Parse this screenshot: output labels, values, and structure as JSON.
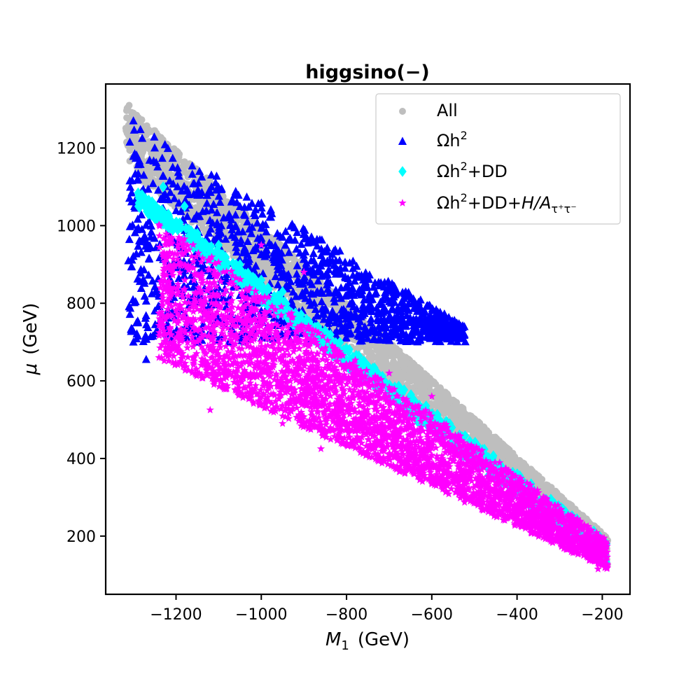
{
  "chart_data": {
    "type": "scatter",
    "title": "higgsino(−)",
    "xlabel_main": "M",
    "xlabel_sub": "1",
    "xlabel_unit": "(GeV)",
    "ylabel_main": "μ",
    "ylabel_unit": "(GeV)",
    "xlim": [
      -1365,
      -135
    ],
    "ylim": [
      50,
      1365
    ],
    "xticks": [
      -1200,
      -1000,
      -800,
      -600,
      -400,
      -200
    ],
    "yticks": [
      200,
      400,
      600,
      800,
      1000,
      1200
    ],
    "xtick_labels": [
      "−1200",
      "−1000",
      "−800",
      "−600",
      "−400",
      "−200"
    ],
    "ytick_labels": [
      "200",
      "400",
      "600",
      "800",
      "1000",
      "1200"
    ],
    "legend_position": "upper right",
    "series": [
      {
        "name": "All",
        "legend_label": "All",
        "marker": "circle",
        "color": "#bebebe",
        "region": {
          "x_range": [
            -1318,
            -187
          ],
          "upper_at_left": 1310,
          "upper_at_right": 195,
          "lower_at_left": 1150,
          "lower_at_right": 120
        },
        "values": [
          [
            -1310,
            1310
          ],
          [
            -1300,
            1290
          ],
          [
            -1250,
            1245
          ],
          [
            -1200,
            1190
          ],
          [
            -1100,
            1085
          ],
          [
            -1000,
            990
          ],
          [
            -900,
            895
          ],
          [
            -800,
            795
          ],
          [
            -700,
            700
          ],
          [
            -600,
            600
          ],
          [
            -500,
            495
          ],
          [
            -400,
            395
          ],
          [
            -300,
            295
          ],
          [
            -200,
            195
          ]
        ]
      },
      {
        "name": "Ωh2",
        "legend_label_pre": "Ωh",
        "legend_label_sup": "2",
        "marker": "triangle",
        "color": "#0000ff",
        "region": {
          "x_range": [
            -1312,
            -520
          ],
          "upper_at_left": 1270,
          "upper_at_right": 740,
          "lower_at_left": 700,
          "lower_at_right": 700
        },
        "values": [
          [
            -1300,
            1270
          ],
          [
            -1300,
            700
          ],
          [
            -1270,
            655
          ],
          [
            -1250,
            1200
          ],
          [
            -1200,
            900
          ],
          [
            -1150,
            700
          ],
          [
            -1100,
            950
          ],
          [
            -1050,
            820
          ],
          [
            -1000,
            780
          ],
          [
            -900,
            860
          ],
          [
            -800,
            820
          ],
          [
            -700,
            760
          ]
        ]
      },
      {
        "name": "Ωh2+DD",
        "legend_label_pre": "Ωh",
        "legend_label_sup": "2",
        "legend_label_post": "+DD",
        "marker": "diamond",
        "color": "#00ffff",
        "region": {
          "x_range": [
            -1290,
            -190
          ],
          "upper_at_left": 1090,
          "upper_at_right": 190,
          "lower_at_left": 1050,
          "lower_at_right": 120
        },
        "values": [
          [
            -1280,
            1080
          ],
          [
            -1230,
            1100
          ],
          [
            -1180,
            1050
          ],
          [
            -1150,
            980
          ],
          [
            -1100,
            950
          ],
          [
            -1050,
            900
          ],
          [
            -1000,
            860
          ],
          [
            -950,
            830
          ],
          [
            -400,
            360
          ],
          [
            -300,
            270
          ],
          [
            -190,
            180
          ]
        ]
      },
      {
        "name": "Ωh2+DD+H/Aτ+τ-",
        "legend_label_pre": "Ωh",
        "legend_label_sup": "2",
        "legend_label_post": "+DD+",
        "legend_label_italic": "H/A",
        "legend_label_sub": "τ⁺τ⁻",
        "marker": "star",
        "color": "#ff00ff",
        "region": {
          "x_range": [
            -1240,
            -188
          ],
          "upper_at_left": 1020,
          "upper_at_right": 190,
          "lower_at_left": 655,
          "lower_at_right": 115
        },
        "values": [
          [
            -1240,
            660
          ],
          [
            -1120,
            525
          ],
          [
            -1000,
            950
          ],
          [
            -950,
            490
          ],
          [
            -900,
            880
          ],
          [
            -860,
            425
          ],
          [
            -800,
            640
          ],
          [
            -700,
            620
          ],
          [
            -600,
            560
          ],
          [
            -500,
            420
          ],
          [
            -400,
            330
          ],
          [
            -300,
            220
          ],
          [
            -200,
            150
          ],
          [
            -210,
            115
          ]
        ]
      }
    ]
  }
}
